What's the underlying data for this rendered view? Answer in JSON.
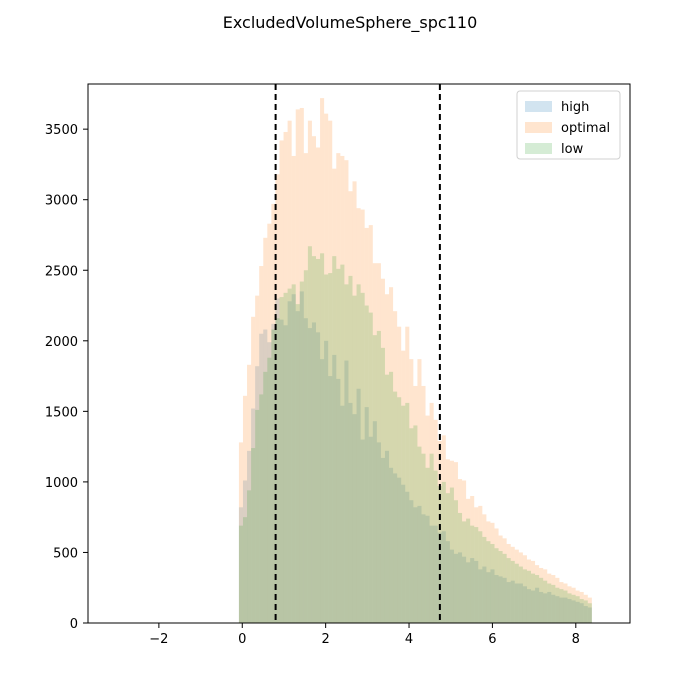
{
  "chart_data": {
    "type": "histogram",
    "title": "ExcludedVolumeSphere_spc110",
    "xlabel": "",
    "ylabel": "",
    "xlim": [
      -3.7,
      9.3
    ],
    "ylim": [
      0,
      3820
    ],
    "xticks": [
      -2,
      0,
      2,
      4,
      6,
      8
    ],
    "xtick_labels": [
      "−2",
      "0",
      "2",
      "4",
      "6",
      "8"
    ],
    "yticks": [
      0,
      500,
      1000,
      1500,
      2000,
      2500,
      3000,
      3500
    ],
    "ytick_labels": [
      "0",
      "500",
      "1000",
      "1500",
      "2000",
      "2500",
      "3000",
      "3500"
    ],
    "grid": false,
    "legend": {
      "placement": "top-right",
      "entries": [
        "high",
        "optimal",
        "low"
      ]
    },
    "bin_start": -0.08,
    "bin_width": 0.0973,
    "vertical_lines": [
      0.8,
      4.74
    ],
    "series": [
      {
        "name": "high",
        "color": "#1f77b4",
        "alpha": 0.2,
        "values": [
          820,
          1010,
          1220,
          1520,
          1820,
          2050,
          2080,
          1990,
          2120,
          2300,
          2150,
          2110,
          2280,
          2330,
          2210,
          2350,
          2160,
          2090,
          2130,
          2060,
          1870,
          2000,
          1750,
          1900,
          1730,
          1540,
          1860,
          1560,
          1480,
          1660,
          1300,
          1530,
          1320,
          1430,
          1280,
          1170,
          1220,
          1100,
          1060,
          1030,
          980,
          930,
          870,
          820,
          830,
          770,
          760,
          690,
          690,
          640,
          650,
          580,
          520,
          490,
          500,
          470,
          430,
          460,
          440,
          380,
          400,
          360,
          380,
          340,
          330,
          320,
          290,
          300,
          280,
          280,
          260,
          240,
          230,
          250,
          220,
          210,
          220,
          200,
          190,
          180,
          180,
          170,
          160,
          150,
          140,
          120,
          110
        ]
      },
      {
        "name": "optimal",
        "color": "#ff7f0e",
        "alpha": 0.2,
        "values": [
          1280,
          1610,
          1830,
          2170,
          2320,
          2530,
          2730,
          2830,
          2970,
          3180,
          3420,
          3480,
          3560,
          3310,
          3640,
          3650,
          3330,
          3560,
          3450,
          3370,
          3720,
          3610,
          3560,
          3220,
          3330,
          3310,
          3280,
          3060,
          3130,
          2940,
          2930,
          2800,
          2820,
          2550,
          2550,
          2440,
          2330,
          2380,
          2210,
          2100,
          1930,
          2100,
          1870,
          1680,
          1870,
          1680,
          1470,
          1560,
          1440,
          1290,
          1330,
          1160,
          1150,
          1140,
          1020,
          1010,
          880,
          900,
          820,
          830,
          770,
          720,
          710,
          670,
          620,
          600,
          560,
          540,
          520,
          500,
          480,
          450,
          440,
          410,
          390,
          380,
          350,
          340,
          320,
          290,
          280,
          260,
          250,
          230,
          220,
          200,
          180
        ]
      },
      {
        "name": "low",
        "color": "#2ca02c",
        "alpha": 0.2,
        "values": [
          690,
          750,
          940,
          1240,
          1510,
          1620,
          1780,
          1880,
          2080,
          2160,
          2310,
          2340,
          2370,
          2400,
          2260,
          2420,
          2500,
          2670,
          2600,
          2580,
          2620,
          2470,
          2480,
          2600,
          2510,
          2540,
          2400,
          2460,
          2320,
          2400,
          2340,
          2250,
          2200,
          2040,
          2070,
          1950,
          1760,
          1780,
          1640,
          1600,
          1540,
          1560,
          1380,
          1400,
          1250,
          1200,
          1100,
          1200,
          1080,
          970,
          1000,
          920,
          960,
          870,
          780,
          720,
          740,
          690,
          680,
          650,
          610,
          580,
          560,
          530,
          510,
          490,
          460,
          440,
          420,
          400,
          380,
          370,
          350,
          340,
          320,
          300,
          280,
          270,
          250,
          240,
          230,
          210,
          200,
          190,
          170,
          160,
          140
        ]
      }
    ]
  }
}
